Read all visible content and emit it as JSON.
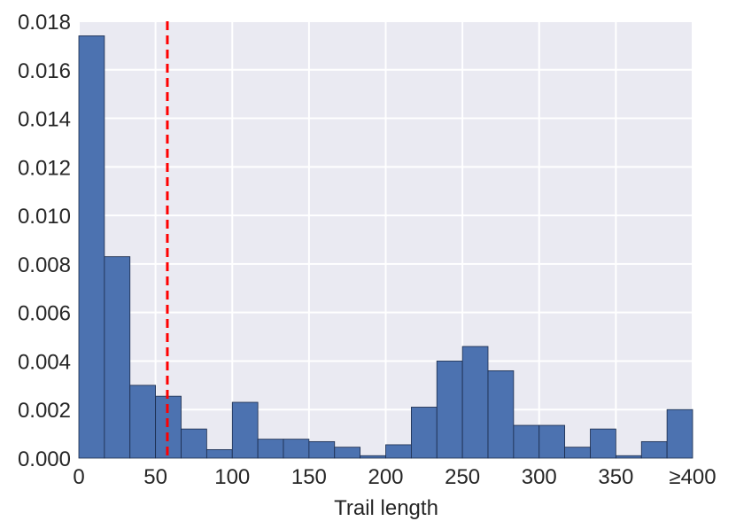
{
  "chart_data": {
    "type": "bar",
    "subtype": "histogram",
    "xlabel": "Trail length",
    "ylabel": "",
    "title": "",
    "xlim": [
      0,
      400
    ],
    "ylim": [
      0,
      0.018
    ],
    "x_ticks": [
      {
        "value": 0,
        "label": "0"
      },
      {
        "value": 50,
        "label": "50"
      },
      {
        "value": 100,
        "label": "100"
      },
      {
        "value": 150,
        "label": "150"
      },
      {
        "value": 200,
        "label": "200"
      },
      {
        "value": 250,
        "label": "250"
      },
      {
        "value": 300,
        "label": "300"
      },
      {
        "value": 350,
        "label": "350"
      },
      {
        "value": 400,
        "label": "≥400"
      }
    ],
    "y_ticks": [
      {
        "value": 0.0,
        "label": "0.000"
      },
      {
        "value": 0.002,
        "label": "0.002"
      },
      {
        "value": 0.004,
        "label": "0.004"
      },
      {
        "value": 0.006,
        "label": "0.006"
      },
      {
        "value": 0.008,
        "label": "0.008"
      },
      {
        "value": 0.01,
        "label": "0.010"
      },
      {
        "value": 0.012,
        "label": "0.012"
      },
      {
        "value": 0.014,
        "label": "0.014"
      },
      {
        "value": 0.016,
        "label": "0.016"
      },
      {
        "value": 0.018,
        "label": "0.018"
      }
    ],
    "bin_edges": [
      0,
      16.67,
      33.33,
      50,
      66.67,
      83.33,
      100,
      116.67,
      133.33,
      150,
      166.67,
      183.33,
      200,
      216.67,
      233.33,
      250,
      266.67,
      283.33,
      300,
      316.67,
      333.33,
      350,
      366.67,
      383.33,
      400
    ],
    "values": [
      0.0174,
      0.0083,
      0.003,
      0.00255,
      0.0012,
      0.00035,
      0.0023,
      0.00078,
      0.00078,
      0.00068,
      0.00045,
      0.0001,
      0.00055,
      0.0021,
      0.004,
      0.0046,
      0.0036,
      0.00135,
      0.00135,
      0.00045,
      0.0012,
      0.0001,
      0.00068,
      0.002
    ],
    "reference_line": {
      "x": 57.7,
      "color": "#ff0000",
      "style": "dashed"
    },
    "grid": true,
    "colors": {
      "bar": "#4c72b0",
      "bar_edge": "#1a2a4a",
      "plot_background": "#eaeaf2",
      "grid": "#ffffff",
      "text": "#262626"
    }
  }
}
